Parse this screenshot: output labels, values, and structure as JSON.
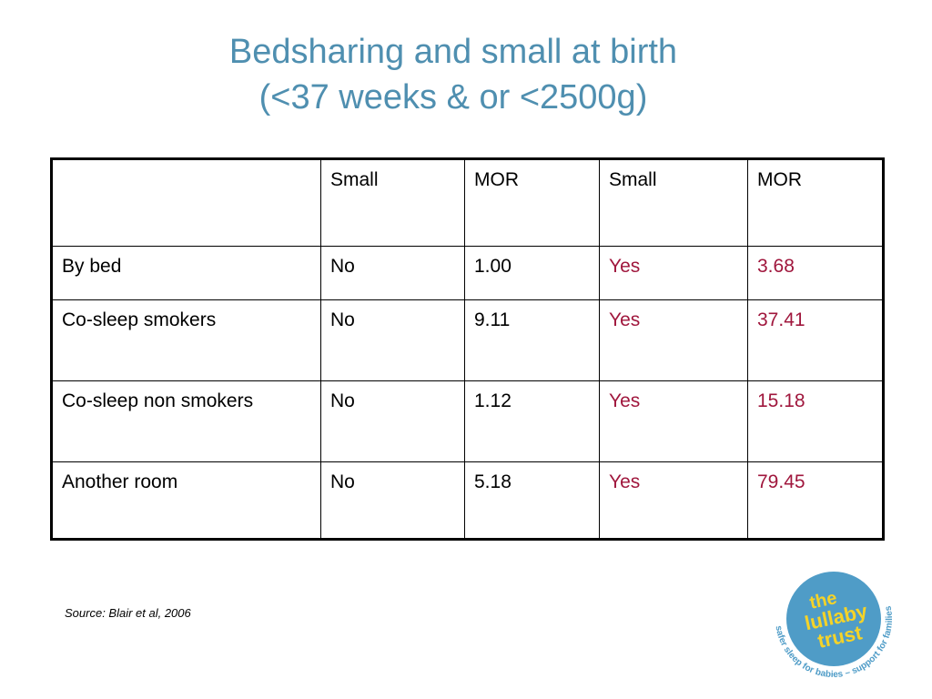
{
  "title": {
    "line1": "Bedsharing and small at birth",
    "line2": "(<37 weeks & or <2500g)"
  },
  "table": {
    "headers": [
      "",
      "Small",
      "MOR",
      "Small",
      "MOR"
    ],
    "rows": [
      [
        "By bed",
        "No",
        "1.00",
        "Yes",
        "3.68"
      ],
      [
        "Co-sleep smokers",
        "No",
        "9.11",
        "Yes",
        "37.41"
      ],
      [
        "Co-sleep non smokers",
        "No",
        "1.12",
        "Yes",
        "15.18"
      ],
      [
        "Another room",
        "No",
        "5.18",
        "Yes",
        "79.45"
      ]
    ]
  },
  "source": "Source: Blair et al, 2006",
  "logo": {
    "line1": "the",
    "line2": "lullaby",
    "line3": "trust",
    "tagline": "safer sleep for babies – support for families"
  },
  "colors": {
    "title": "#4f8fb0",
    "highlight": "#a0173d",
    "logo_circle": "#4f9cc7",
    "logo_text": "#f5d328"
  }
}
